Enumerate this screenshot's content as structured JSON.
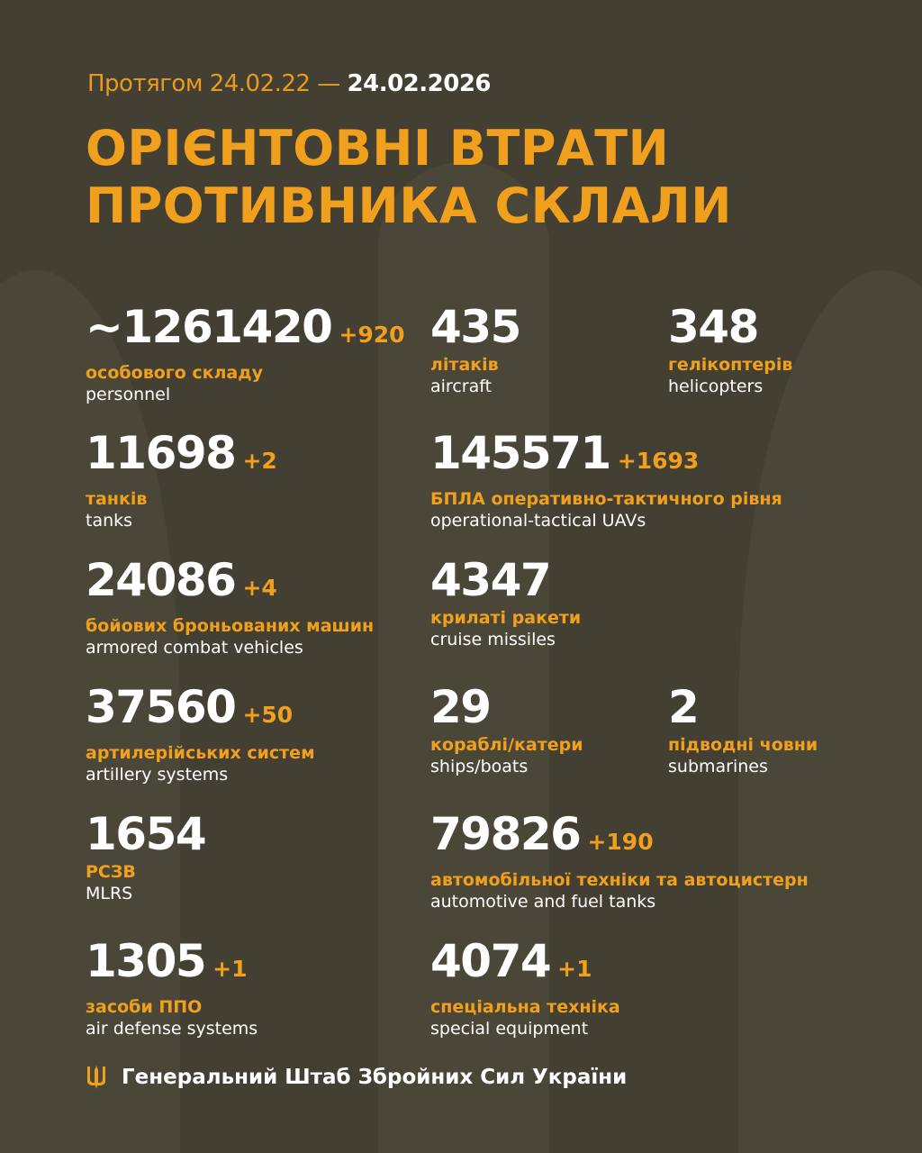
{
  "header": {
    "period_prefix": "Протягом 24.02.22 —",
    "period_end": "24.02.2026",
    "title_line1": "ОРІЄНТОВНІ ВТРАТИ",
    "title_line2": "ПРОТИВНИКА СКЛАЛИ"
  },
  "stats": [
    {
      "value": "~1261420",
      "delta": "+920",
      "ua": "особового складу",
      "en": "personnel"
    },
    {
      "value": "435",
      "delta": "",
      "ua": "літаків",
      "en": "aircraft"
    },
    {
      "value": "348",
      "delta": "",
      "ua": "гелікоптерів",
      "en": "helicopters"
    },
    {
      "value": "11698",
      "delta": "+2",
      "ua": "танків",
      "en": "tanks"
    },
    {
      "value": "145571",
      "delta": "+1693",
      "ua": "БПЛА оперативно-тактичного рівня",
      "en": "operational-tactical UAVs"
    },
    {
      "value": "24086",
      "delta": "+4",
      "ua": "бойових броньованих машин",
      "en": "armored combat vehicles"
    },
    {
      "value": "4347",
      "delta": "",
      "ua": "крилаті ракети",
      "en": "cruise missiles"
    },
    {
      "value": "37560",
      "delta": "+50",
      "ua": "артилерійських систем",
      "en": "artillery systems"
    },
    {
      "value": "29",
      "delta": "",
      "ua": "кораблі/катери",
      "en": "ships/boats"
    },
    {
      "value": "2",
      "delta": "",
      "ua": "підводні човни",
      "en": "submarines"
    },
    {
      "value": "1654",
      "delta": "",
      "ua": "РСЗВ",
      "en": "MLRS"
    },
    {
      "value": "79826",
      "delta": "+190",
      "ua": "автомобільної техніки та автоцистерн",
      "en": "automotive and fuel tanks"
    },
    {
      "value": "1305",
      "delta": "+1",
      "ua": "засоби ППО",
      "en": "air defense systems"
    },
    {
      "value": "4074",
      "delta": "+1",
      "ua": "спеціальна техніка",
      "en": "special equipment"
    }
  ],
  "footer": {
    "icon": "trident-icon",
    "text": "Генеральний Штаб Збройних Сил України"
  },
  "colors": {
    "background": "#433f33",
    "accent": "#f0a01c",
    "text": "#ffffff"
  }
}
